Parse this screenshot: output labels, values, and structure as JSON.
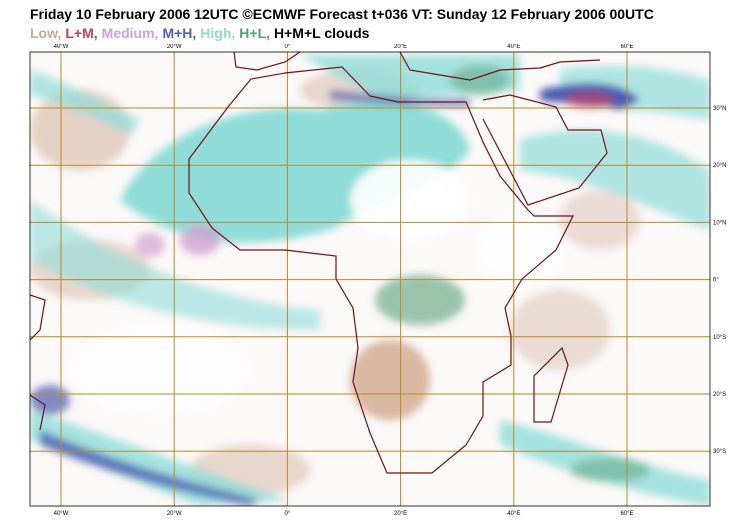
{
  "header": {
    "title": "Friday 10 February 2006 12UTC ©ECMWF Forecast t+036 VT: Sunday 12 February 2006 00UTC",
    "legend": [
      "Low,",
      "L+M,",
      "Medium,",
      "M+H,",
      "High,",
      "H+L,",
      "H+M+L clouds"
    ]
  },
  "map": {
    "longitude_labels": [
      "40°W",
      "20°W",
      "0°",
      "20°E",
      "40°E",
      "60°E"
    ],
    "latitude_labels": [
      "30°N",
      "20°N",
      "10°N",
      "0°",
      "10°S",
      "20°S",
      "30°S"
    ]
  }
}
